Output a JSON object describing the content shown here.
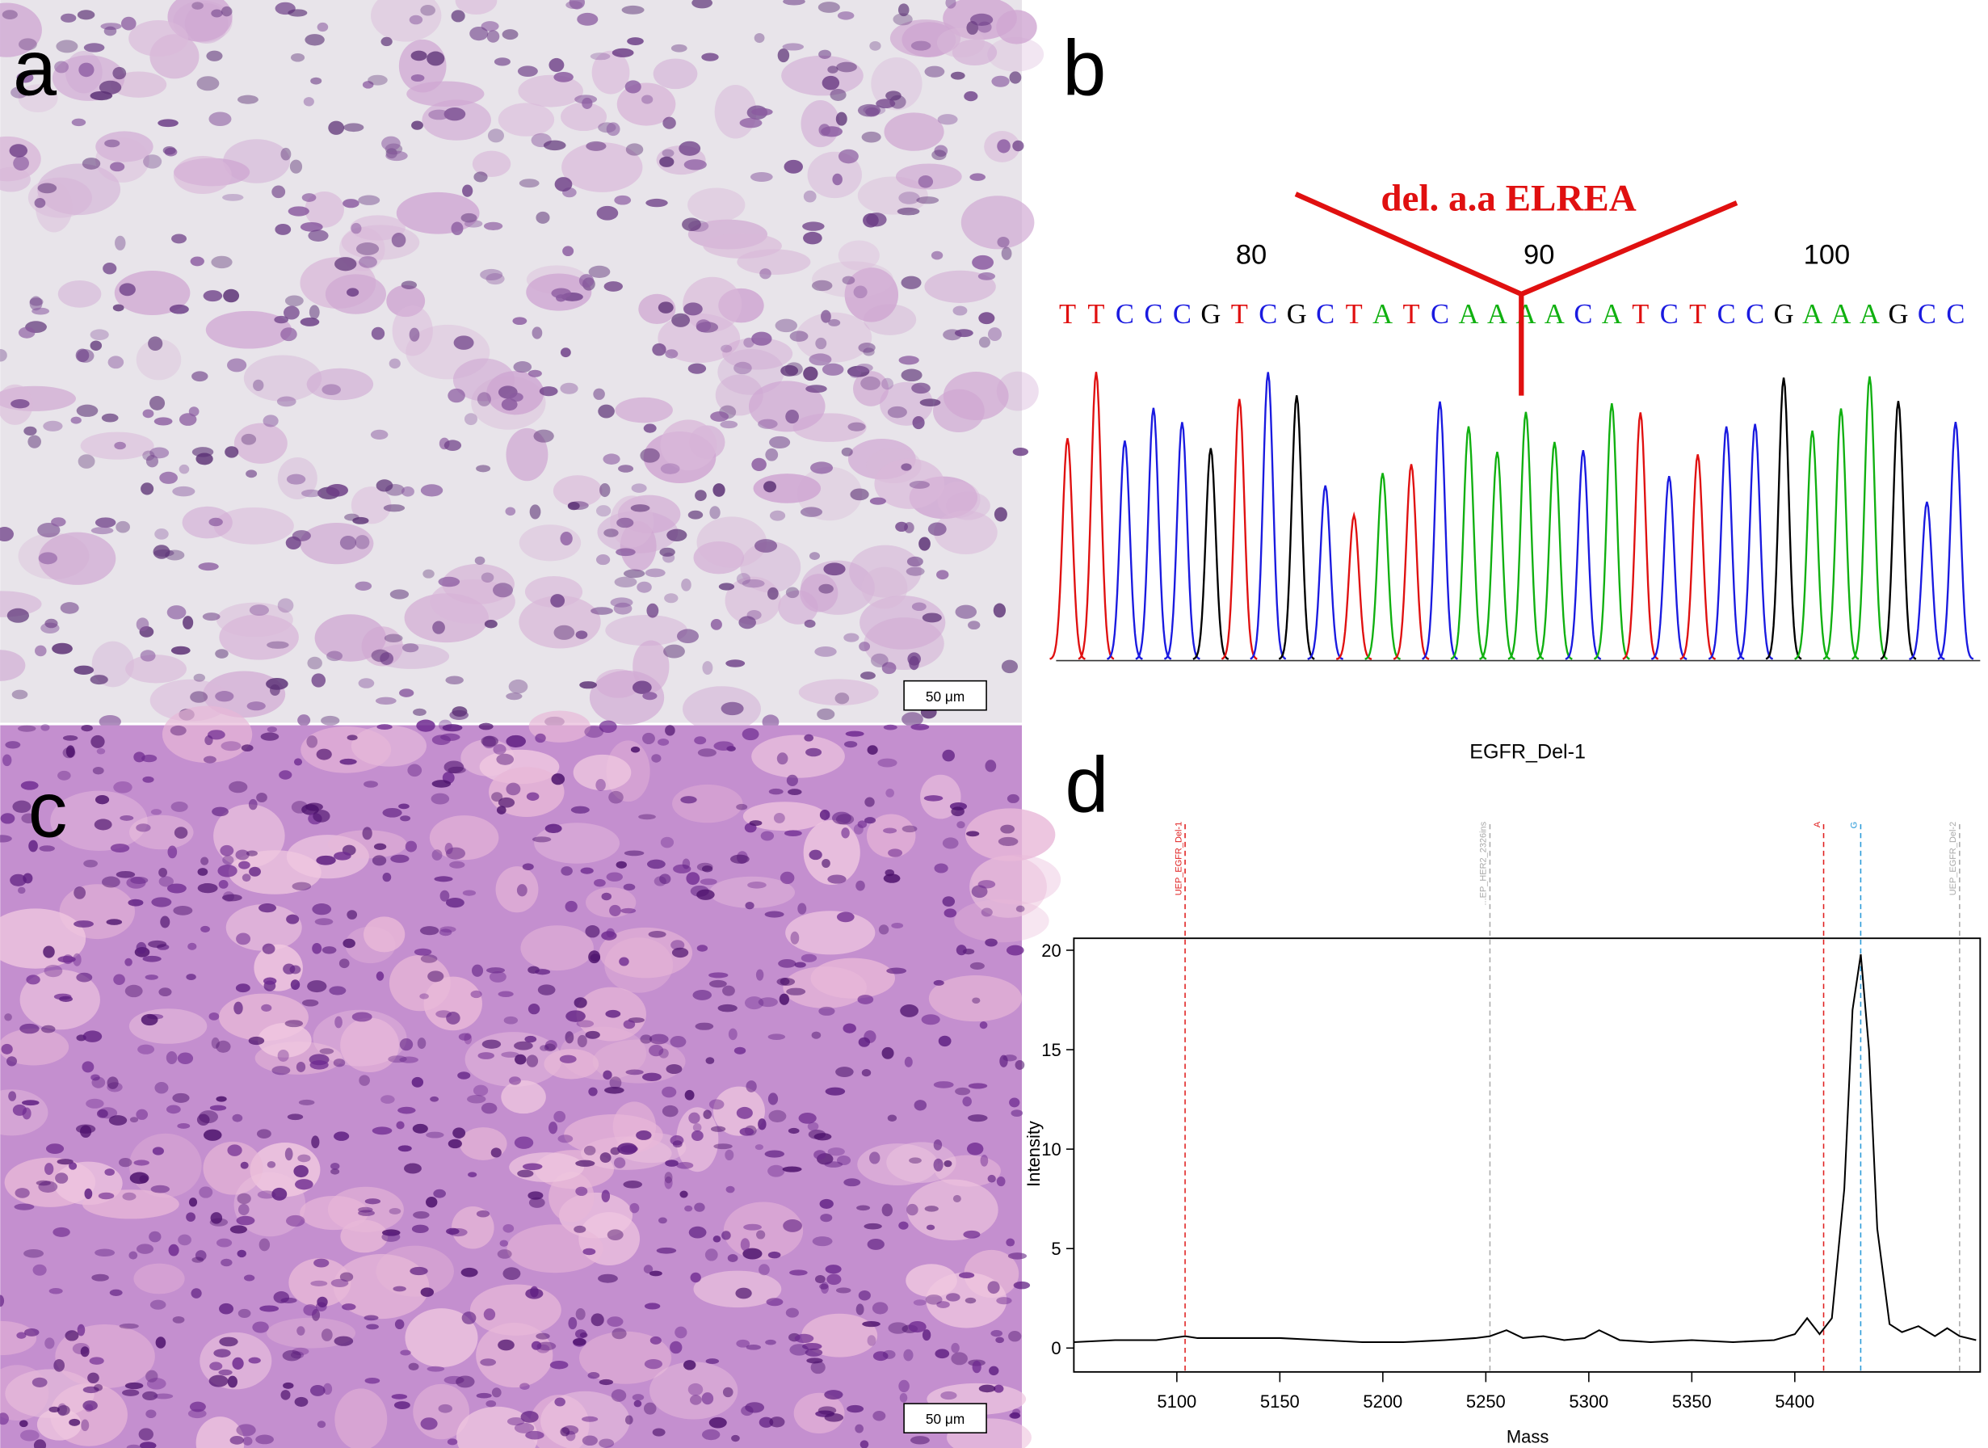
{
  "panels": {
    "a": {
      "label": "a",
      "scale_bar": "50 μm"
    },
    "b": {
      "label": "b",
      "annotation": "del. a.a ELREA",
      "positions": [
        80,
        90,
        100
      ],
      "sequence": [
        "T",
        "T",
        "C",
        "C",
        "C",
        "G",
        "T",
        "C",
        "G",
        "C",
        "T",
        "A",
        "T",
        "C",
        "A",
        "A",
        "A",
        "A",
        "C",
        "A",
        "T",
        "C",
        "T",
        "C",
        "C",
        "G",
        "A",
        "A",
        "A",
        "G",
        "C",
        "C"
      ]
    },
    "c": {
      "label": "c",
      "scale_bar": "50 μm"
    },
    "d": {
      "label": "d"
    }
  },
  "chart_data": {
    "type": "line",
    "title": "EGFR_Del-1",
    "x_label": "Mass",
    "y_label": "Intensity",
    "xlim": [
      5050,
      5490
    ],
    "ylim": [
      -1.2,
      20.6
    ],
    "xticks": [
      5100,
      5150,
      5200,
      5250,
      5300,
      5350,
      5400
    ],
    "yticks": [
      0,
      5,
      10,
      15,
      20
    ],
    "markers": [
      {
        "label": "UEP_EGFR_Del-1",
        "x": 5104,
        "color": "#e02020"
      },
      {
        "label": "...EP_HER2_2326ins",
        "x": 5252,
        "color": "#aaaaaa"
      },
      {
        "label": "A",
        "x": 5414,
        "color": "#e02020"
      },
      {
        "label": "G",
        "x": 5432,
        "color": "#2a9ad8"
      },
      {
        "label": "UEP_EGFR_Del-2",
        "x": 5480,
        "color": "#aaaaaa"
      }
    ],
    "series": [
      {
        "color": "#000000",
        "x": [
          5050,
          5070,
          5090,
          5104,
          5110,
          5130,
          5150,
          5170,
          5190,
          5210,
          5230,
          5245,
          5252,
          5260,
          5268,
          5278,
          5288,
          5298,
          5305,
          5315,
          5330,
          5350,
          5370,
          5390,
          5400,
          5406,
          5412,
          5418,
          5424,
          5428,
          5432,
          5436,
          5440,
          5446,
          5452,
          5460,
          5468,
          5474,
          5480,
          5488
        ],
        "values": [
          0.3,
          0.4,
          0.4,
          0.6,
          0.5,
          0.5,
          0.5,
          0.4,
          0.3,
          0.3,
          0.4,
          0.5,
          0.6,
          0.9,
          0.5,
          0.6,
          0.4,
          0.5,
          0.9,
          0.4,
          0.3,
          0.4,
          0.3,
          0.4,
          0.7,
          1.5,
          0.7,
          1.5,
          8,
          17,
          19.8,
          15,
          6,
          1.2,
          0.8,
          1.1,
          0.6,
          1,
          0.6,
          0.4
        ]
      }
    ]
  }
}
